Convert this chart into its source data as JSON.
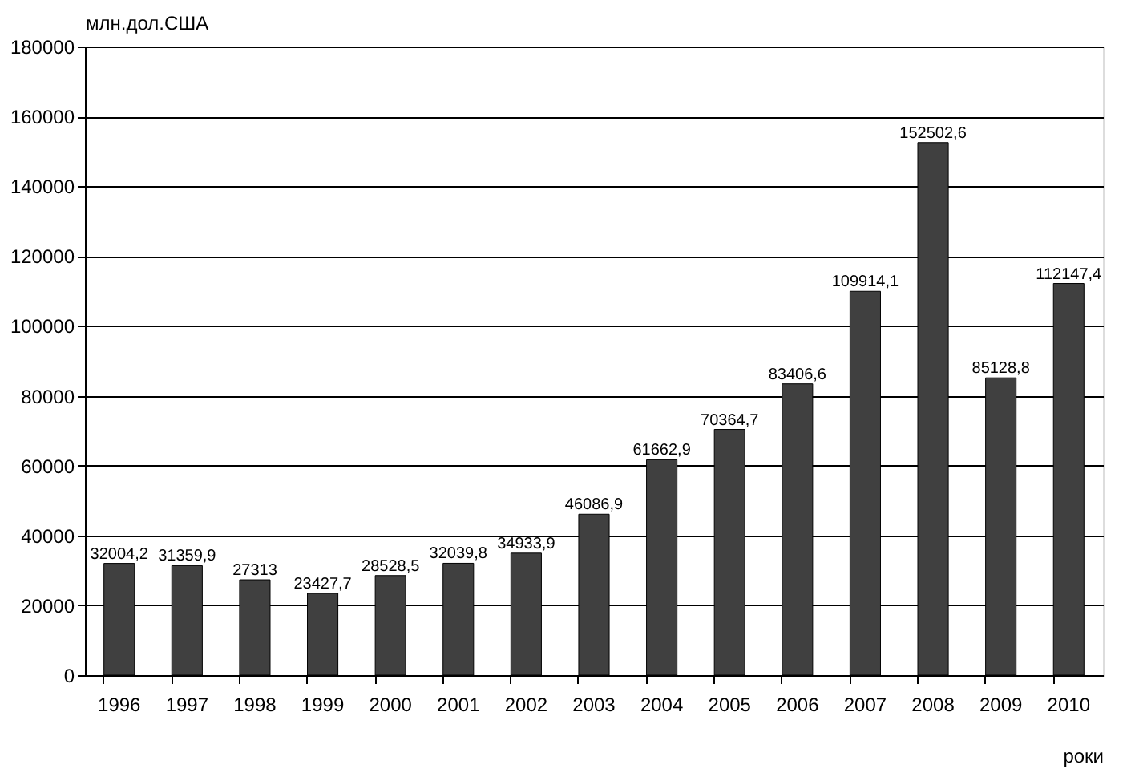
{
  "chart_data": {
    "type": "bar",
    "xlabel": "роки",
    "ylabel": "млн.дол.США",
    "categories": [
      "1996",
      "1997",
      "1998",
      "1999",
      "2000",
      "2001",
      "2002",
      "2003",
      "2004",
      "2005",
      "2006",
      "2007",
      "2008",
      "2009",
      "2010"
    ],
    "values": [
      32004.2,
      31359.9,
      27313,
      23427.7,
      28528.5,
      32039.8,
      34933.9,
      46086.9,
      61662.9,
      70364.7,
      83406.6,
      109914.1,
      152502.6,
      85128.8,
      112147.4
    ],
    "value_labels": [
      "32004,2",
      "31359,9",
      "27313",
      "23427,7",
      "28528,5",
      "32039,8",
      "34933,9",
      "46086,9",
      "61662,9",
      "70364,7",
      "83406,6",
      "109914,1",
      "152502,6",
      "85128,8",
      "112147,4"
    ],
    "color": "#404040",
    "ylim": [
      0,
      180000
    ],
    "yticks": [
      0,
      20000,
      40000,
      60000,
      80000,
      100000,
      120000,
      140000,
      160000,
      180000
    ],
    "grid": "y"
  }
}
